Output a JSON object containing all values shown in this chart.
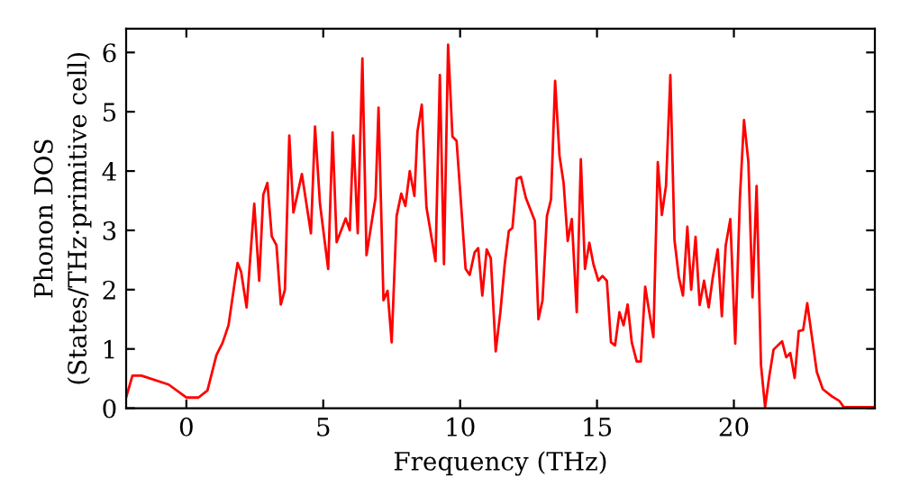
{
  "chart_data": {
    "type": "line",
    "xlabel": "Frequency (THz)",
    "ylabel": "Phonon DOS\n(States/THz·primitive cell)",
    "xlim": [
      -2.2,
      25.15
    ],
    "ylim": [
      0,
      6.4
    ],
    "xticks": [
      0,
      5,
      10,
      15,
      20
    ],
    "yticks": [
      0,
      1,
      2,
      3,
      4,
      5,
      6
    ],
    "grid": false,
    "legend": false,
    "marker": "none",
    "line_style": "solid",
    "series": [
      {
        "color": "#ff0000",
        "x": [
          -2.19,
          -1.97,
          -1.64,
          -0.65,
          0.0,
          0.44,
          0.77,
          1.1,
          1.32,
          1.54,
          1.87,
          2.0,
          2.2,
          2.48,
          2.66,
          2.81,
          2.96,
          3.12,
          3.29,
          3.45,
          3.6,
          3.76,
          3.91,
          4.22,
          4.55,
          4.7,
          4.88,
          5.18,
          5.34,
          5.49,
          5.82,
          5.97,
          6.1,
          6.26,
          6.43,
          6.58,
          6.91,
          7.02,
          7.2,
          7.35,
          7.5,
          7.68,
          7.85,
          8.0,
          8.16,
          8.33,
          8.44,
          8.6,
          8.77,
          9.1,
          9.26,
          9.41,
          9.56,
          9.72,
          9.87,
          10.05,
          10.2,
          10.35,
          10.53,
          10.66,
          10.81,
          10.97,
          11.12,
          11.3,
          11.47,
          11.63,
          11.78,
          11.91,
          12.07,
          12.22,
          12.4,
          12.73,
          12.86,
          13.01,
          13.17,
          13.32,
          13.47,
          13.63,
          13.78,
          13.93,
          14.08,
          14.26,
          14.41,
          14.56,
          14.72,
          14.87,
          15.05,
          15.2,
          15.36,
          15.51,
          15.66,
          15.82,
          15.97,
          16.12,
          16.27,
          16.45,
          16.6,
          16.76,
          16.91,
          17.06,
          17.22,
          17.37,
          17.52,
          17.68,
          17.83,
          17.99,
          18.14,
          18.3,
          18.44,
          18.6,
          18.75,
          18.91,
          19.08,
          19.23,
          19.41,
          19.56,
          19.7,
          19.87,
          20.05,
          20.22,
          20.37,
          20.53,
          20.68,
          20.83,
          20.99,
          21.14,
          21.29,
          21.45,
          21.76,
          21.91,
          22.06,
          22.22,
          22.37,
          22.53,
          22.68,
          22.83,
          23.03,
          23.25,
          23.58,
          23.86,
          24.01,
          25.1
        ],
        "values": [
          0.2,
          0.55,
          0.55,
          0.4,
          0.18,
          0.18,
          0.3,
          0.9,
          1.1,
          1.4,
          2.45,
          2.3,
          1.7,
          3.45,
          2.15,
          3.6,
          3.8,
          2.9,
          2.75,
          1.75,
          2.0,
          4.6,
          3.3,
          3.95,
          2.95,
          4.75,
          3.45,
          2.35,
          4.65,
          2.8,
          3.2,
          3.0,
          4.6,
          2.95,
          5.9,
          2.58,
          3.55,
          5.07,
          1.82,
          1.98,
          1.11,
          3.24,
          3.62,
          3.41,
          4.0,
          3.58,
          4.66,
          5.12,
          3.39,
          2.48,
          5.62,
          2.43,
          6.13,
          4.58,
          4.51,
          3.34,
          2.35,
          2.25,
          2.63,
          2.7,
          1.9,
          2.68,
          2.53,
          0.96,
          1.62,
          2.43,
          2.99,
          3.04,
          3.87,
          3.9,
          3.55,
          3.16,
          1.5,
          1.82,
          3.24,
          3.52,
          5.52,
          4.26,
          3.8,
          2.82,
          3.19,
          1.62,
          4.2,
          2.35,
          2.79,
          2.43,
          2.15,
          2.23,
          2.15,
          1.11,
          1.06,
          1.62,
          1.4,
          1.75,
          1.11,
          0.79,
          0.79,
          2.05,
          1.62,
          1.2,
          4.15,
          3.26,
          3.75,
          5.62,
          2.84,
          2.21,
          1.9,
          3.06,
          2.0,
          2.89,
          1.74,
          2.15,
          1.7,
          2.21,
          2.68,
          1.55,
          2.74,
          3.19,
          1.09,
          3.55,
          4.86,
          4.15,
          1.87,
          3.75,
          0.73,
          0.02,
          0.53,
          0.99,
          1.13,
          0.86,
          0.93,
          0.51,
          1.3,
          1.32,
          1.77,
          1.27,
          0.61,
          0.32,
          0.2,
          0.12,
          0.02,
          0.02
        ]
      }
    ]
  }
}
